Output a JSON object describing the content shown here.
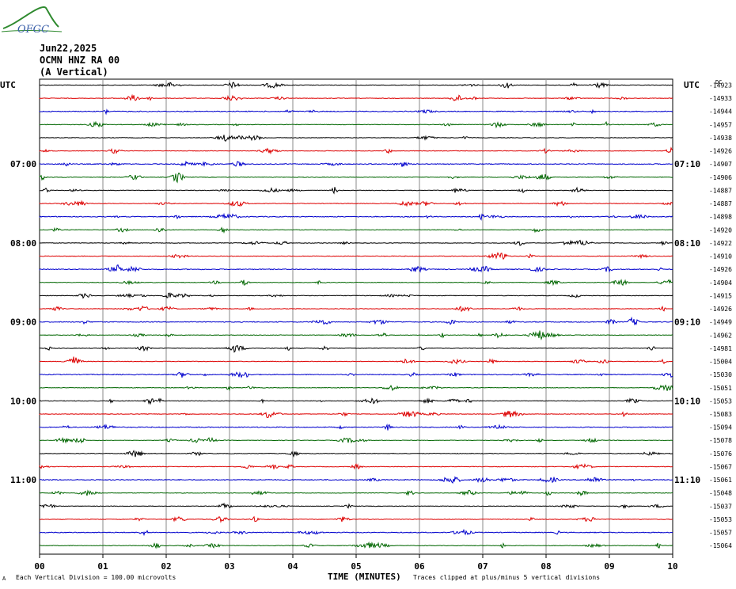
{
  "logo": {
    "text": "OFGC"
  },
  "header": {
    "date": "Jun22,2025",
    "station": "OCMN HNZ RA 00",
    "component": "(A Vertical)"
  },
  "chart_data": {
    "type": "line",
    "title": "",
    "xlabel": "TIME (MINUTES)",
    "x_tick_labels": [
      "00",
      "01",
      "02",
      "03",
      "04",
      "05",
      "06",
      "07",
      "08",
      "09",
      "10"
    ],
    "xlim": [
      0,
      10
    ],
    "left_axis_label": "UTC",
    "right_axis_label": "UTC",
    "right_unit": "DC",
    "left_hour_labels": [
      "07:00",
      "08:00",
      "09:00",
      "10:00",
      "11:00"
    ],
    "right_hour_labels": [
      "07:10",
      "08:10",
      "09:10",
      "10:10",
      "11:10"
    ],
    "hour_label_rows": [
      6,
      12,
      18,
      24,
      30
    ],
    "trace_colors": [
      "#000000",
      "#dd0000",
      "#0000cc",
      "#006600"
    ],
    "dc_offsets": [
      "-14923",
      "-14933",
      "-14944",
      "-14957",
      "-14938",
      "-14926",
      "-14907",
      "-14906",
      "-14887",
      "-14887",
      "-14898",
      "-14920",
      "-14922",
      "-14910",
      "-14926",
      "-14904",
      "-14915",
      "-14926",
      "-14949",
      "-14962",
      "-14981",
      "-15004",
      "-15030",
      "-15051",
      "-15053",
      "-15083",
      "-15094",
      "-15078",
      "-15076",
      "-15067",
      "-15061",
      "-15048",
      "-15037",
      "-15053",
      "-15057",
      "-15064"
    ],
    "footer_scale": "Each Vertical Division =  100.00 microvolts",
    "footer_clip": "Traces clipped at plus/minus 5 vertical divisions",
    "grid": true
  },
  "footer": {
    "mark": "A"
  }
}
